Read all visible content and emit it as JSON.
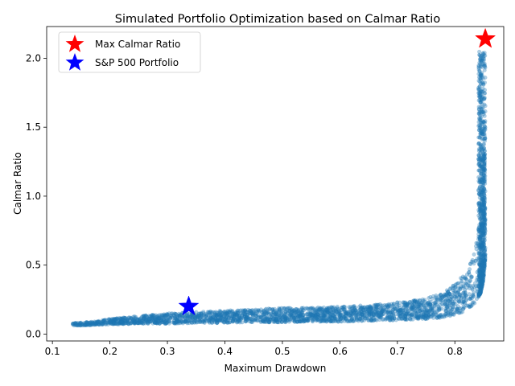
{
  "chart_data": {
    "type": "scatter",
    "title": "Simulated Portfolio Optimization based on Calmar Ratio",
    "xlabel": "Maximum Drawdown",
    "ylabel": "Calmar Ratio",
    "xlim": [
      0.09,
      0.885
    ],
    "ylim": [
      -0.05,
      2.23
    ],
    "x_ticks": [
      0.1,
      0.2,
      0.3,
      0.4,
      0.5,
      0.6,
      0.7,
      0.8
    ],
    "y_ticks": [
      0.0,
      0.5,
      1.0,
      1.5,
      2.0
    ],
    "grid": false,
    "legend_position": "top-left",
    "series": [
      {
        "role": "simulated-portfolios",
        "color": "#1f77b4",
        "alpha": 0.35,
        "marker": "circle",
        "cloud_envelope": {
          "x": [
            0.135,
            0.17,
            0.2,
            0.25,
            0.3,
            0.35,
            0.4,
            0.45,
            0.5,
            0.55,
            0.6,
            0.65,
            0.7,
            0.75,
            0.78,
            0.8,
            0.82,
            0.835,
            0.845,
            0.85,
            0.853
          ],
          "y_low": [
            0.06,
            0.065,
            0.07,
            0.075,
            0.075,
            0.08,
            0.08,
            0.085,
            0.085,
            0.09,
            0.09,
            0.095,
            0.1,
            0.11,
            0.12,
            0.14,
            0.17,
            0.22,
            0.3,
            0.4,
            0.55
          ],
          "y_high": [
            0.08,
            0.09,
            0.11,
            0.13,
            0.15,
            0.16,
            0.17,
            0.18,
            0.19,
            0.19,
            0.2,
            0.21,
            0.23,
            0.26,
            0.3,
            0.36,
            0.45,
            0.6,
            0.9,
            1.4,
            2.05
          ]
        }
      },
      {
        "name": "Max Calmar Ratio",
        "color": "#ff0000",
        "marker": "star",
        "x": [
          0.853
        ],
        "y": [
          2.14
        ]
      },
      {
        "name": "S&P 500 Portfolio",
        "color": "#0000ff",
        "marker": "star",
        "x": [
          0.337
        ],
        "y": [
          0.2
        ]
      }
    ]
  }
}
